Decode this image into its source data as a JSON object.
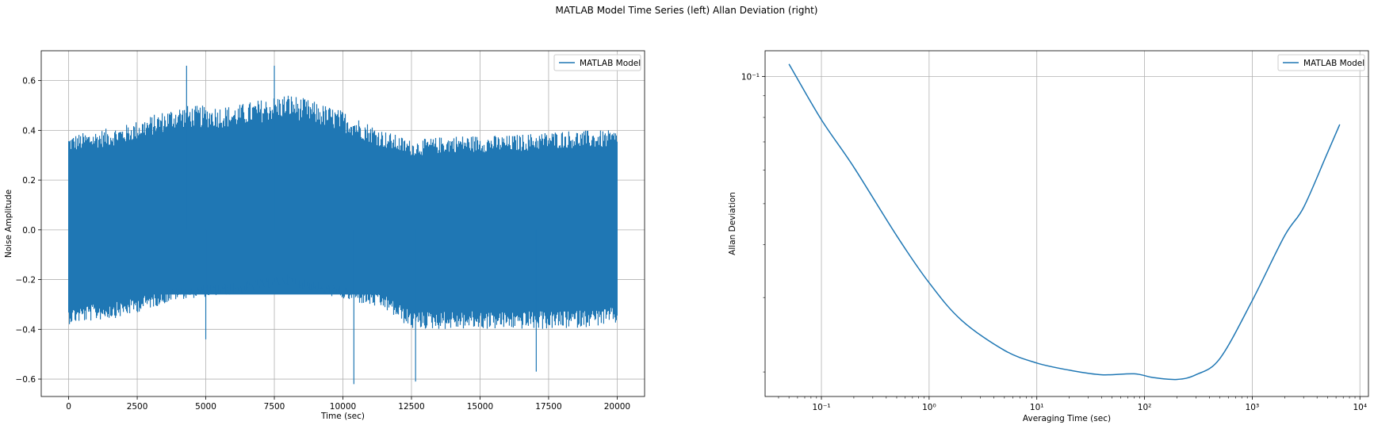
{
  "figure_title": "MATLAB Model Time Series (left) Allan Deviation (right)",
  "colors": {
    "series": "#1f77b4",
    "grid": "#b0b0b0",
    "axes": "#000000",
    "legend_edge": "#cccccc"
  },
  "chart_data": [
    {
      "type": "line",
      "title": "",
      "xlabel": "Time (sec)",
      "ylabel": "Noise Amplitude",
      "xlim": [
        -1000,
        21000
      ],
      "ylim": [
        -0.67,
        0.72
      ],
      "grid": true,
      "legend_placement": "upper-right",
      "x_ticks": [
        0,
        2500,
        5000,
        7500,
        10000,
        12500,
        15000,
        17500,
        20000
      ],
      "x_tick_labels": [
        "0",
        "2500",
        "5000",
        "7500",
        "10000",
        "12500",
        "15000",
        "17500",
        "20000"
      ],
      "y_ticks": [
        -0.6,
        -0.4,
        -0.2,
        0.0,
        0.2,
        0.4,
        0.6
      ],
      "y_tick_labels": [
        "−0.6",
        "−0.4",
        "−0.2",
        "0.0",
        "0.2",
        "0.4",
        "0.6"
      ],
      "series": [
        {
          "name": "MATLAB Model",
          "description_points": {
            "x": [
              0,
              2000,
              4000,
              6000,
              8000,
              10000,
              11500,
              12500,
              14000,
              16000,
              18000,
              20000
            ],
            "envelope_upper": [
              0.38,
              0.42,
              0.5,
              0.5,
              0.55,
              0.48,
              0.4,
              0.36,
              0.38,
              0.38,
              0.4,
              0.4
            ],
            "envelope_lower": [
              -0.38,
              -0.35,
              -0.28,
              -0.26,
              -0.22,
              -0.28,
              -0.32,
              -0.4,
              -0.4,
              -0.4,
              -0.4,
              -0.38
            ]
          },
          "spikes": [
            {
              "x": 4300,
              "y": 0.66
            },
            {
              "x": 7500,
              "y": 0.66
            },
            {
              "x": 12650,
              "y": -0.61
            },
            {
              "x": 17050,
              "y": -0.57
            },
            {
              "x": 5000,
              "y": -0.44
            },
            {
              "x": 10400,
              "y": -0.62
            }
          ]
        }
      ]
    },
    {
      "type": "line",
      "title": "",
      "xlabel": "Averaging Time (sec)",
      "ylabel": "Allan Deviation",
      "xscale": "log",
      "yscale": "log",
      "xlim": [
        0.03,
        12000
      ],
      "ylim": [
        0.0175,
        0.115
      ],
      "grid": true,
      "legend_placement": "upper-right",
      "x_ticks": [
        0.1,
        1,
        10,
        100,
        1000,
        10000
      ],
      "x_tick_labels": [
        "10⁻¹",
        "10⁰",
        "10¹",
        "10²",
        "10³",
        "10⁴"
      ],
      "y_ticks": [
        0.1
      ],
      "y_tick_labels": [
        "10⁻¹"
      ],
      "series": [
        {
          "name": "MATLAB Model",
          "x": [
            0.05,
            0.1,
            0.2,
            0.5,
            1,
            2,
            5,
            10,
            20,
            40,
            80,
            120,
            200,
            300,
            500,
            1000,
            2000,
            3000,
            5000,
            6500
          ],
          "y": [
            0.107,
            0.079,
            0.061,
            0.042,
            0.0325,
            0.0265,
            0.0225,
            0.021,
            0.0202,
            0.0197,
            0.0198,
            0.0194,
            0.0192,
            0.0197,
            0.0215,
            0.0295,
            0.042,
            0.049,
            0.066,
            0.077
          ]
        }
      ]
    }
  ]
}
